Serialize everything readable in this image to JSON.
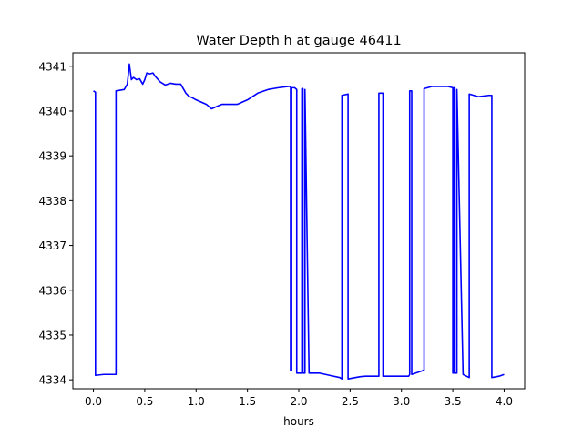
{
  "chart_data": {
    "type": "line",
    "title": "Water Depth h at gauge 46411",
    "xlabel": "hours",
    "ylabel": "",
    "xlim": [
      -0.2,
      4.2
    ],
    "ylim": [
      4333.8,
      4341.3
    ],
    "xticks": [
      0.0,
      0.5,
      1.0,
      1.5,
      2.0,
      2.5,
      3.0,
      3.5,
      4.0
    ],
    "xtick_labels": [
      "0.0",
      "0.5",
      "1.0",
      "1.5",
      "2.0",
      "2.5",
      "3.0",
      "3.5",
      "4.0"
    ],
    "yticks": [
      4334,
      4335,
      4336,
      4337,
      4338,
      4339,
      4340,
      4341
    ],
    "ytick_labels": [
      "4334",
      "4335",
      "4336",
      "4337",
      "4338",
      "4339",
      "4340",
      "4341"
    ],
    "grid": false,
    "series": [
      {
        "color": "#0000ff",
        "x": [
          0.0,
          0.02,
          0.02,
          0.1,
          0.22,
          0.22,
          0.3,
          0.33,
          0.35,
          0.37,
          0.39,
          0.42,
          0.45,
          0.48,
          0.5,
          0.52,
          0.55,
          0.58,
          0.6,
          0.65,
          0.7,
          0.75,
          0.8,
          0.85,
          0.9,
          0.93,
          0.96,
          1.0,
          1.05,
          1.1,
          1.15,
          1.2,
          1.25,
          1.3,
          1.4,
          1.45,
          1.5,
          1.6,
          1.7,
          1.8,
          1.9,
          1.92,
          1.92,
          1.93,
          1.93,
          1.96,
          1.98,
          1.98,
          2.03,
          2.03,
          2.04,
          2.04,
          2.06,
          2.06,
          2.1,
          2.2,
          2.3,
          2.4,
          2.42,
          2.42,
          2.48,
          2.48,
          2.55,
          2.6,
          2.65,
          2.75,
          2.78,
          2.78,
          2.82,
          2.82,
          2.9,
          3.0,
          3.07,
          3.08,
          3.08,
          3.1,
          3.1,
          3.2,
          3.22,
          3.22,
          3.3,
          3.38,
          3.45,
          3.5,
          3.5,
          3.51,
          3.51,
          3.52,
          3.52,
          3.54,
          3.54,
          3.6,
          3.66,
          3.66,
          3.75,
          3.85,
          3.88,
          3.88,
          3.95,
          4.0
        ],
        "y": [
          4340.45,
          4340.42,
          4334.1,
          4334.12,
          4334.12,
          4340.45,
          4340.48,
          4340.6,
          4341.05,
          4340.7,
          4340.75,
          4340.7,
          4340.72,
          4340.6,
          4340.7,
          4340.85,
          4340.83,
          4340.85,
          4340.78,
          4340.65,
          4340.58,
          4340.62,
          4340.6,
          4340.6,
          4340.4,
          4340.33,
          4340.3,
          4340.25,
          4340.2,
          4340.15,
          4340.05,
          4340.1,
          4340.15,
          4340.15,
          4340.15,
          4340.2,
          4340.25,
          4340.4,
          4340.48,
          4340.52,
          4340.55,
          4340.55,
          4334.2,
          4334.2,
          4340.52,
          4340.52,
          4340.48,
          4334.15,
          4334.15,
          4340.5,
          4340.5,
          4334.15,
          4334.15,
          4340.48,
          4334.15,
          4334.15,
          4334.1,
          4334.05,
          4334.02,
          4340.35,
          4340.38,
          4334.02,
          4334.05,
          4334.07,
          4334.08,
          4334.08,
          4334.08,
          4340.4,
          4340.4,
          4334.08,
          4334.08,
          4334.08,
          4334.08,
          4334.12,
          4340.45,
          4340.45,
          4334.12,
          4334.2,
          4334.22,
          4340.5,
          4340.55,
          4340.55,
          4340.55,
          4340.52,
          4334.15,
          4334.15,
          4340.52,
          4340.52,
          4334.15,
          4334.15,
          4340.48,
          4334.12,
          4334.05,
          4340.38,
          4340.32,
          4340.35,
          4340.35,
          4334.05,
          4334.08,
          4334.12
        ]
      }
    ]
  }
}
